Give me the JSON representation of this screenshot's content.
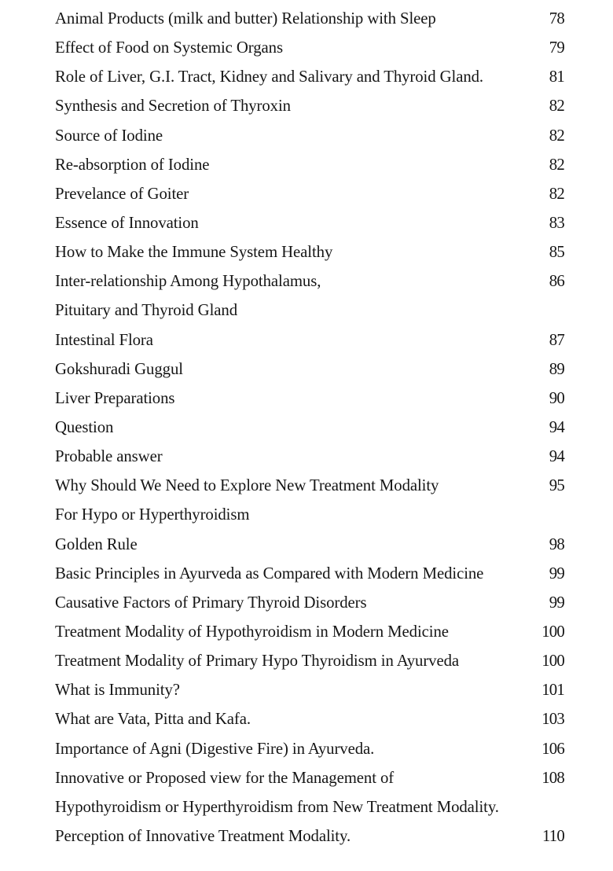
{
  "entries": [
    {
      "title": "Animal Products (milk and butter) Relationship with Sleep",
      "page": "78"
    },
    {
      "title": "Effect of Food on Systemic Organs",
      "page": "79"
    },
    {
      "title": "Role of Liver, G.I. Tract, Kidney and Salivary and Thyroid Gland.",
      "page": "81"
    },
    {
      "title": "Synthesis and Secretion of Thyroxin",
      "page": "82"
    },
    {
      "title": "Source of Iodine",
      "page": "82"
    },
    {
      "title": "Re-absorption of Iodine",
      "page": "82"
    },
    {
      "title": "Prevelance of Goiter",
      "page": "82"
    },
    {
      "title": "Essence of Innovation",
      "page": "83"
    },
    {
      "title": "How to Make the Immune System Healthy",
      "page": "85"
    },
    {
      "title": "Inter-relationship Among Hypothalamus,",
      "page": "86"
    },
    {
      "title": "Pituitary and Thyroid Gland",
      "page": ""
    },
    {
      "title": "Intestinal Flora",
      "page": "87"
    },
    {
      "title": "Gokshuradi Guggul",
      "page": "89"
    },
    {
      "title": "Liver Preparations",
      "page": "90"
    },
    {
      "title": "Question",
      "page": "94"
    },
    {
      "title": "Probable answer",
      "page": "94"
    },
    {
      "title": "Why Should We Need to Explore New Treatment Modality",
      "page": "95"
    },
    {
      "title": "For Hypo or Hyperthyroidism",
      "page": ""
    },
    {
      "title": "Golden Rule",
      "page": "98"
    },
    {
      "title": "Basic Principles in Ayurveda as Compared with Modern Medicine",
      "page": "99"
    },
    {
      "title": "Causative Factors of Primary Thyroid Disorders",
      "page": "99"
    },
    {
      "title": "Treatment Modality of Hypothyroidism in Modern Medicine",
      "page": "100"
    },
    {
      "title": "Treatment Modality of Primary Hypo Thyroidism in Ayurveda",
      "page": "100"
    },
    {
      "title": "What is Immunity?",
      "page": "101"
    },
    {
      "title": "What are Vata, Pitta and Kafa.",
      "page": "103"
    },
    {
      "title": "Importance of Agni (Digestive Fire) in Ayurveda.",
      "page": "106"
    },
    {
      "title": "Innovative or Proposed view for the Management of",
      "page": "108"
    },
    {
      "title": "Hypothyroidism or Hyperthyroidism from  New Treatment Modality.",
      "page": ""
    },
    {
      "title": "Perception of Innovative Treatment Modality.",
      "page": "110"
    }
  ]
}
